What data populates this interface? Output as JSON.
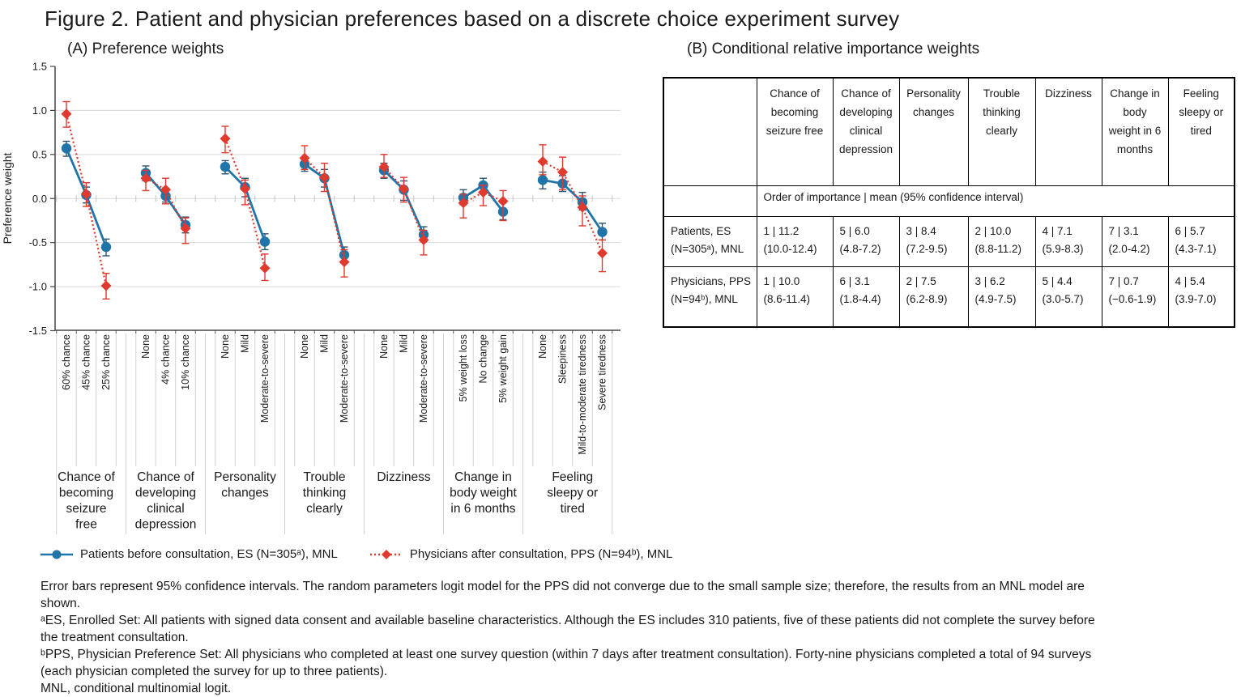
{
  "figure_title": "Figure 2. Patient and physician preferences based on a discrete choice experiment survey",
  "panel_a": {
    "title": "(A) Preference weights"
  },
  "panel_b": {
    "title": "(B) Conditional relative importance weights"
  },
  "legend": {
    "items": [
      {
        "label": "Patients before consultation, ES (N=305ᵃ), MNL",
        "color": "#2074a8",
        "marker": "circle",
        "line": "solid"
      },
      {
        "label": "Physicians after consultation, PPS (N=94ᵇ), MNL",
        "color": "#e0392e",
        "marker": "diamond",
        "line": "dotted"
      }
    ]
  },
  "footnotes": [
    "Error bars represent 95% confidence intervals. The random parameters logit model for the PPS did not converge due to the small sample size; therefore, the results from an MNL model are shown.",
    "ᵃES, Enrolled Set: All patients with signed data consent and available baseline characteristics. Although the ES includes 310 patients, five of these patients did not complete the survey before the treatment consultation.",
    "ᵇPPS, Physician Preference Set: All physicians who completed at least one survey question (within 7 days after treatment consultation). Forty-nine physicians completed a total of 94 surveys (each physician completed the survey for up to three patients).",
    "MNL, conditional multinomial logit."
  ],
  "chart_data": {
    "type": "line",
    "title": "(A) Preference weights",
    "ylabel": "Preference weight",
    "ylim": [
      -1.5,
      1.5
    ],
    "grid": "horizontal",
    "yticks": {
      "values": [
        1.5,
        1.0,
        0.5,
        0.0,
        -0.5,
        -1.0,
        -1.5
      ],
      "labels": [
        "1.5",
        "1.0",
        "0.5",
        "0.0",
        "-0.5",
        "-1.0",
        "-1.5"
      ]
    },
    "gridline_values": [
      1.0,
      0.5,
      0.0,
      -0.5,
      -1.0
    ],
    "groups": [
      {
        "label": "Chance of\nbecoming\nseizure\nfree",
        "levels": [
          "60% chance",
          "45% chance",
          "25% chance"
        ]
      },
      {
        "label": "Chance of\ndeveloping\nclinical\ndepression",
        "levels": [
          "None",
          "4% chance",
          "10% chance"
        ]
      },
      {
        "label": "Personality\nchanges",
        "levels": [
          "None",
          "Mild",
          "Moderate-to-severe"
        ]
      },
      {
        "label": "Trouble\nthinking\nclearly",
        "levels": [
          "None",
          "Mild",
          "Moderate-to-severe"
        ]
      },
      {
        "label": "Dizziness",
        "levels": [
          "None",
          "Mild",
          "Moderate-to-severe"
        ]
      },
      {
        "label": "Change in\nbody weight\nin 6 months",
        "levels": [
          "5% weight loss",
          "No change",
          "5% weight gain"
        ]
      },
      {
        "label": "Feeling\nsleepy or\ntired",
        "levels": [
          "None",
          "Sleepiness",
          "Mild-to-moderate tiredness",
          "Severe tiredness"
        ]
      }
    ],
    "series": [
      {
        "id": "patients",
        "name": "Patients before consultation, ES (N=305ᵃ), MNL",
        "color": "#2074a8",
        "error_color": "#2b5570",
        "marker": "circle",
        "line": "solid",
        "values": [
          0.57,
          0.04,
          -0.55,
          0.29,
          0.03,
          -0.3,
          0.36,
          0.13,
          -0.49,
          0.39,
          0.23,
          -0.64,
          0.32,
          0.1,
          -0.41,
          0.01,
          0.15,
          -0.15,
          0.21,
          0.17,
          -0.04,
          -0.38
        ],
        "ci_low": [
          0.48,
          -0.05,
          -0.65,
          0.2,
          -0.04,
          -0.39,
          0.28,
          0.02,
          -0.58,
          0.31,
          0.13,
          -0.73,
          0.23,
          -0.02,
          -0.49,
          -0.07,
          0.05,
          -0.24,
          0.11,
          0.08,
          -0.13,
          -0.47
        ],
        "ci_high": [
          0.65,
          0.13,
          -0.46,
          0.37,
          0.12,
          -0.21,
          0.43,
          0.23,
          -0.4,
          0.47,
          0.33,
          -0.55,
          0.4,
          0.2,
          -0.32,
          0.1,
          0.23,
          -0.05,
          0.3,
          0.26,
          0.07,
          -0.28
        ]
      },
      {
        "id": "physicians",
        "name": "Physicians after consultation, PPS (N=94ᵇ), MNL",
        "color": "#e0392e",
        "error_color": "#e0392e",
        "marker": "diamond",
        "line": "dotted",
        "values": [
          0.96,
          0.05,
          -0.99,
          0.23,
          0.1,
          -0.34,
          0.68,
          0.11,
          -0.79,
          0.46,
          0.24,
          -0.72,
          0.36,
          0.11,
          -0.47,
          -0.05,
          0.07,
          -0.03,
          0.42,
          0.3,
          -0.1,
          -0.62
        ],
        "ci_low": [
          0.81,
          -0.09,
          -1.14,
          0.09,
          -0.06,
          -0.51,
          0.52,
          -0.07,
          -0.93,
          0.33,
          0.08,
          -0.89,
          0.24,
          -0.04,
          -0.64,
          -0.22,
          -0.08,
          -0.25,
          0.27,
          0.1,
          -0.31,
          -0.83
        ],
        "ci_high": [
          1.1,
          0.18,
          -0.85,
          0.32,
          0.23,
          -0.22,
          0.82,
          0.21,
          -0.63,
          0.6,
          0.4,
          -0.58,
          0.5,
          0.24,
          -0.36,
          0.05,
          0.15,
          0.09,
          0.61,
          0.47,
          0.03,
          -0.47
        ]
      }
    ]
  },
  "table": {
    "columns": [
      "Chance of becoming seizure free",
      "Chance of developing clinical depression",
      "Personality changes",
      "Trouble thinking clearly",
      "Dizziness",
      "Change in body weight in 6 months",
      "Feeling sleepy or tired"
    ],
    "span_header": "Order of importance | mean (95% confidence interval)",
    "rows": [
      {
        "label": "Patients, ES (N=305ᵃ), MNL",
        "cells": [
          [
            "1 | 11.2",
            "(10.0-12.4)"
          ],
          [
            "5 | 6.0",
            "(4.8-7.2)"
          ],
          [
            "3 | 8.4",
            "(7.2-9.5)"
          ],
          [
            "2 | 10.0",
            "(8.8-11.2)"
          ],
          [
            "4 | 7.1",
            "(5.9-8.3)"
          ],
          [
            "7 | 3.1",
            "(2.0-4.2)"
          ],
          [
            "6 | 5.7",
            "(4.3-7.1)"
          ]
        ]
      },
      {
        "label": "Physicians, PPS (N=94ᵇ), MNL",
        "cells": [
          [
            "1 | 10.0",
            "(8.6-11.4)"
          ],
          [
            "6 | 3.1",
            "(1.8-4.4)"
          ],
          [
            "2 | 7.5",
            "(6.2-8.9)"
          ],
          [
            "3 | 6.2",
            "(4.9-7.5)"
          ],
          [
            "5 | 4.4",
            "(3.0-5.7)"
          ],
          [
            "7 | 0.7",
            "(−0.6-1.9)"
          ],
          [
            "4 | 5.4",
            "(3.9-7.0)"
          ]
        ]
      }
    ]
  }
}
